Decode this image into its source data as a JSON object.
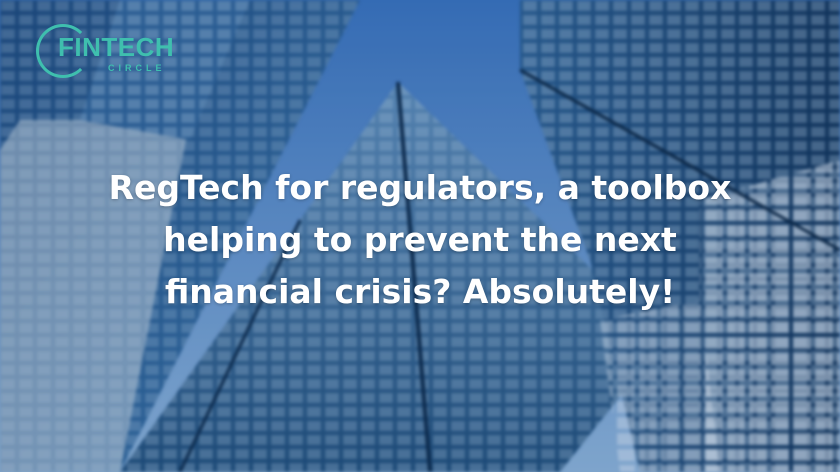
{
  "logo": {
    "main": "FINTECH",
    "sub": "CIRCLE"
  },
  "headline": {
    "line1": "RegTech for regulators, a toolbox",
    "line2": "helping to prevent the next",
    "line3": "financial crisis? Absolutely!"
  },
  "colors": {
    "sky": "#4f86c9",
    "glass_dark": "#1c4f86",
    "glass_light": "#8fb6da",
    "logo": "#3fbfae",
    "text": "#ffffff"
  }
}
